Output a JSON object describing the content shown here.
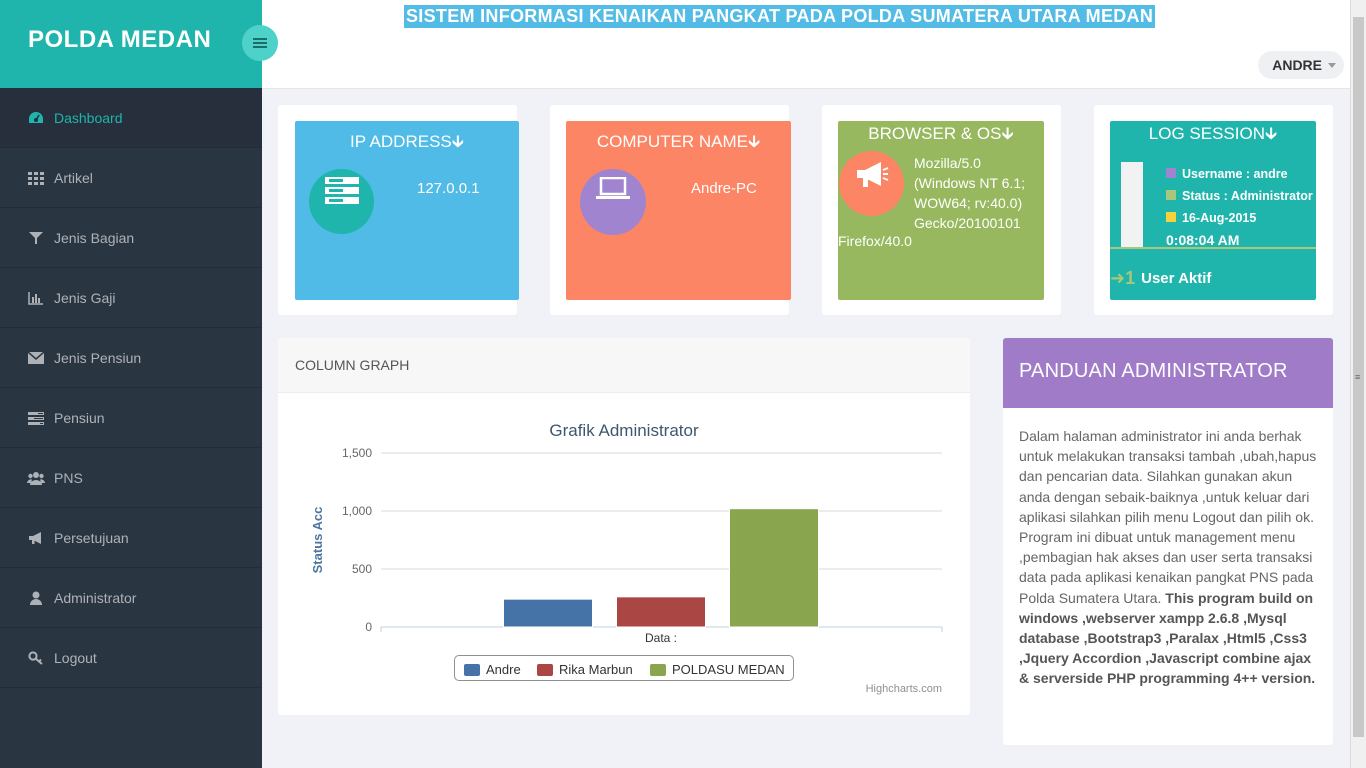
{
  "brand": {
    "title": "POLDA MEDAN",
    "color": "#1fb5ac"
  },
  "header": {
    "headline": "SISTEM INFORMASI KENAIKAN PANGKAT PADA POLDA SUMATERA UTARA MEDAN",
    "user": "ANDRE"
  },
  "sidebar": {
    "items": [
      {
        "label": "Dashboard",
        "icon": "dashboard-icon",
        "active": true
      },
      {
        "label": "Artikel",
        "icon": "grid-icon"
      },
      {
        "label": "Jenis Bagian",
        "icon": "filter-icon"
      },
      {
        "label": "Jenis Gaji",
        "icon": "bar-chart-icon"
      },
      {
        "label": "Jenis Pensiun",
        "icon": "envelope-icon"
      },
      {
        "label": "Pensiun",
        "icon": "tasks-icon"
      },
      {
        "label": "PNS",
        "icon": "users-icon"
      },
      {
        "label": "Persetujuan",
        "icon": "bullhorn-icon"
      },
      {
        "label": "Administrator",
        "icon": "user-icon"
      },
      {
        "label": "Logout",
        "icon": "key-icon"
      }
    ]
  },
  "tiles": {
    "ip": {
      "title": "IP ADDRESS",
      "value": "127.0.0.1",
      "color": "#4fbbe6",
      "icon": "server-icon"
    },
    "computer": {
      "title": "COMPUTER NAME",
      "value": "Andre-PC",
      "color": "#fb8565",
      "icon": "laptop-icon"
    },
    "browser": {
      "title": "BROWSER & OS",
      "value_lines": [
        "Mozilla/5.0",
        "(Windows NT 6.1;",
        "WOW64; rv:40.0)",
        "Gecko/20100101",
        "Firefox/40.0"
      ],
      "color": "#97b85e",
      "icon": "bullhorn-icon"
    },
    "session": {
      "title": "LOG SESSION",
      "username": "Username : andre",
      "status": "Status : Administrator",
      "date": "16-Aug-2015",
      "time": "0:08:04 AM",
      "active_count": "1",
      "active_label": "User Aktif",
      "color": "#1fb5ac"
    }
  },
  "column_graph": {
    "heading": "COLUMN GRAPH"
  },
  "chart_data": {
    "type": "bar",
    "title": "Grafik Administrator",
    "xlabel": "Data :",
    "ylabel": "Status Acc",
    "ylim": [
      0,
      1500
    ],
    "yticks": [
      "0",
      "500",
      "1,000",
      "1,500"
    ],
    "categories": [
      ""
    ],
    "series": [
      {
        "name": "Andre",
        "values": [
          240
        ],
        "color": "#4572a7"
      },
      {
        "name": "Rika Marbun",
        "values": [
          260
        ],
        "color": "#aa4643"
      },
      {
        "name": "POLDASU MEDAN",
        "values": [
          1020
        ],
        "color": "#89a54e"
      }
    ],
    "credit": "Highcharts.com",
    "legend": "bottom-center"
  },
  "guide": {
    "title": "PANDUAN ADMINISTRATOR",
    "text": "Dalam halaman administrator ini anda berhak untuk melakukan transaksi tambah ,ubah,hapus dan pencarian data. Silahkan gunakan akun anda dengan sebaik-baiknya ,untuk keluar dari aplikasi silahkan pilih menu Logout dan pilih ok. Program ini dibuat untuk management menu ,pembagian hak akses dan user serta transaksi data pada aplikasi kenaikan pangkat PNS pada Polda Sumatera Utara.",
    "bold": "This program build on windows ,webserver xampp 2.6.8 ,Mysql database ,Bootstrap3 ,Paralax ,Html5 ,Css3 ,Jquery Accordion ,Javascript combine ajax & serverside PHP programming 4++ version."
  }
}
